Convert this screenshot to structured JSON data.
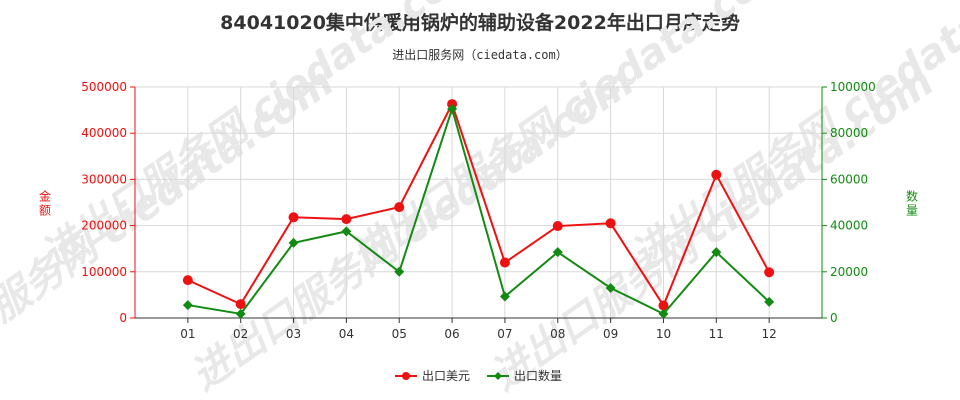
{
  "title": "84041020集中供暖用锅炉的辅助设备2022年出口月度走势",
  "subtitle": "进出口服务网（ciedata.com）",
  "watermark": "进出口服务网 ciedata.com",
  "chart_data": {
    "type": "line",
    "categories": [
      "01",
      "02",
      "03",
      "04",
      "05",
      "06",
      "07",
      "08",
      "09",
      "10",
      "11",
      "12"
    ],
    "series": [
      {
        "name": "出口美元",
        "axis": "left",
        "color": "#ee1111",
        "marker": "circle",
        "values": [
          82000,
          30000,
          218000,
          214000,
          240000,
          463000,
          120000,
          199000,
          205000,
          27000,
          310000,
          99000
        ]
      },
      {
        "name": "出口数量",
        "axis": "right",
        "color": "#138b13",
        "marker": "diamond",
        "values": [
          5600,
          1800,
          32500,
          37500,
          20000,
          90500,
          9300,
          28500,
          13000,
          1800,
          28500,
          7000
        ]
      }
    ],
    "ylabel_left": "金额",
    "ylabel_right": "数量",
    "ylim_left": [
      0,
      500000
    ],
    "ylim_right": [
      0,
      100000
    ],
    "yticks_left": [
      "0",
      "100000",
      "200000",
      "300000",
      "400000",
      "500000"
    ],
    "yticks_right": [
      "0",
      "20000",
      "40000",
      "60000",
      "80000",
      "100000"
    ],
    "grid": true,
    "legend_position": "bottom"
  }
}
